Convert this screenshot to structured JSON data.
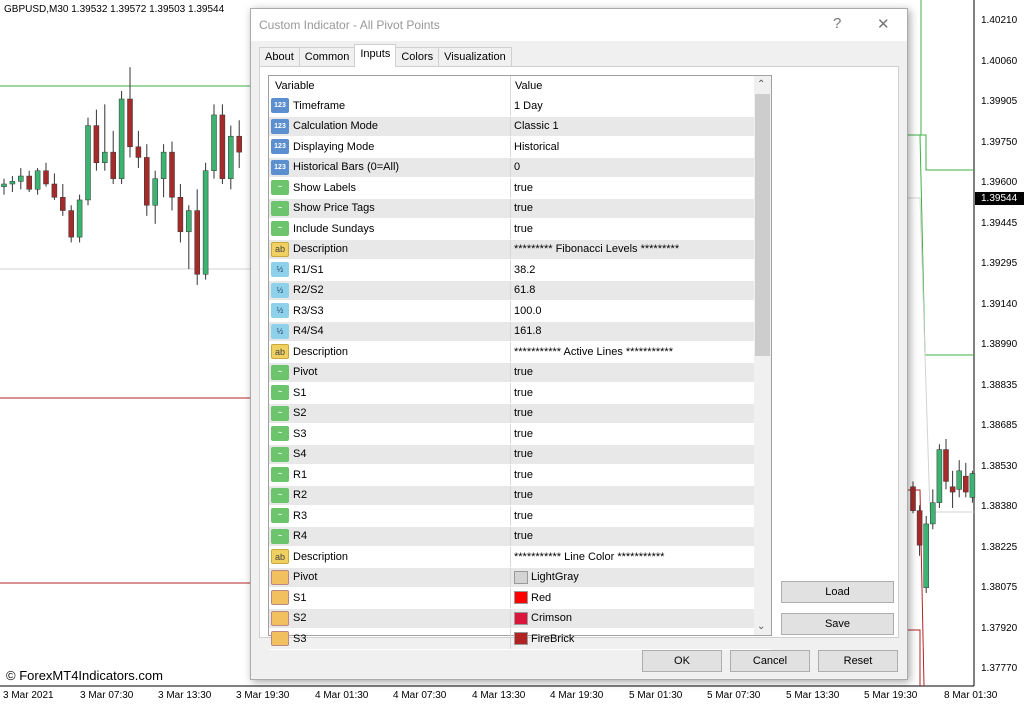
{
  "chart": {
    "symbol_line": "GBPUSD,M30  1.39532 1.39572 1.39503 1.39544",
    "price_axis": [
      "1.40210",
      "1.40060",
      "1.39905",
      "1.39750",
      "1.39600",
      "1.39445",
      "1.39295",
      "1.39140",
      "1.38990",
      "1.38835",
      "1.38685",
      "1.38530",
      "1.38380",
      "1.38225",
      "1.38075",
      "1.37920",
      "1.37770"
    ],
    "current_price": "1.39544",
    "time_axis": [
      "3 Mar 2021",
      "3 Mar 07:30",
      "3 Mar 13:30",
      "3 Mar 19:30",
      "4 Mar 01:30",
      "4 Mar 07:30",
      "4 Mar 13:30",
      "4 Mar 19:30",
      "5 Mar 01:30",
      "5 Mar 07:30",
      "5 Mar 13:30",
      "5 Mar 19:30",
      "8 Mar 01:30"
    ],
    "copyright": "© ForexMT4Indicators.com",
    "colors": {
      "bull": "#3cb371",
      "bear": "#a52a2a",
      "support": "#b22222",
      "resistance": "#3cb043",
      "pivot": "#d3d3d3"
    },
    "candles": [
      [
        1.3959,
        1.3962,
        1.3956,
        1.396
      ],
      [
        1.396,
        1.3963,
        1.3957,
        1.3961
      ],
      [
        1.3961,
        1.3966,
        1.3958,
        1.3963
      ],
      [
        1.3963,
        1.3965,
        1.3957,
        1.3958
      ],
      [
        1.3958,
        1.3966,
        1.3956,
        1.3965
      ],
      [
        1.3965,
        1.3968,
        1.3959,
        1.396
      ],
      [
        1.396,
        1.3964,
        1.3954,
        1.3955
      ],
      [
        1.3955,
        1.396,
        1.3948,
        1.395
      ],
      [
        1.395,
        1.3952,
        1.3938,
        1.394
      ],
      [
        1.394,
        1.3956,
        1.3938,
        1.3954
      ],
      [
        1.3954,
        1.3985,
        1.3952,
        1.3982
      ],
      [
        1.3982,
        1.3988,
        1.3965,
        1.3968
      ],
      [
        1.3968,
        1.399,
        1.3965,
        1.3972
      ],
      [
        1.3972,
        1.398,
        1.396,
        1.3962
      ],
      [
        1.3962,
        1.3995,
        1.396,
        1.3992
      ],
      [
        1.3992,
        1.4004,
        1.397,
        1.3974
      ],
      [
        1.3974,
        1.398,
        1.3966,
        1.397
      ],
      [
        1.397,
        1.3975,
        1.3948,
        1.3952
      ],
      [
        1.3952,
        1.3965,
        1.3945,
        1.3962
      ],
      [
        1.3962,
        1.3975,
        1.3955,
        1.3972
      ],
      [
        1.3972,
        1.3976,
        1.395,
        1.3955
      ],
      [
        1.3955,
        1.396,
        1.3938,
        1.3942
      ],
      [
        1.3942,
        1.3952,
        1.3928,
        1.395
      ],
      [
        1.395,
        1.3958,
        1.3922,
        1.3926
      ],
      [
        1.3926,
        1.3968,
        1.3924,
        1.3965
      ],
      [
        1.3965,
        1.399,
        1.3962,
        1.3986
      ],
      [
        1.3986,
        1.399,
        1.396,
        1.3962
      ],
      [
        1.3962,
        1.3982,
        1.3958,
        1.3978
      ],
      [
        1.3978,
        1.3984,
        1.3966,
        1.3972
      ]
    ],
    "candles_right": [
      [
        1.3846,
        1.3848,
        1.3836,
        1.3837
      ],
      [
        1.3837,
        1.3839,
        1.382,
        1.3824
      ],
      [
        1.3808,
        1.3835,
        1.3806,
        1.3832
      ],
      [
        1.3832,
        1.3845,
        1.383,
        1.384
      ],
      [
        1.384,
        1.3862,
        1.3838,
        1.386
      ],
      [
        1.386,
        1.3864,
        1.3845,
        1.3848
      ],
      [
        1.3846,
        1.3852,
        1.3838,
        1.3844
      ],
      [
        1.3845,
        1.3856,
        1.3842,
        1.3852
      ],
      [
        1.385,
        1.3855,
        1.3842,
        1.3844
      ],
      [
        1.3842,
        1.3852,
        1.384,
        1.3851
      ]
    ]
  },
  "dialog": {
    "title": "Custom Indicator - All Pivot Points",
    "help": "?",
    "close": "✕",
    "tabs": [
      "About",
      "Common",
      "Inputs",
      "Colors",
      "Visualization"
    ],
    "active_tab": "Inputs",
    "columns": [
      "Variable",
      "Value"
    ],
    "rows": [
      {
        "type": "int",
        "icon": "123",
        "variable": "Timeframe",
        "value": "1 Day"
      },
      {
        "type": "int",
        "icon": "123",
        "variable": "Calculation Mode",
        "value": "Classic 1"
      },
      {
        "type": "int",
        "icon": "123",
        "variable": "Displaying Mode",
        "value": "Historical"
      },
      {
        "type": "int",
        "icon": "123",
        "variable": "Historical Bars (0=All)",
        "value": "0"
      },
      {
        "type": "bool",
        "icon": "~",
        "variable": "Show Labels",
        "value": "true"
      },
      {
        "type": "bool",
        "icon": "~",
        "variable": "Show Price Tags",
        "value": "true"
      },
      {
        "type": "bool",
        "icon": "~",
        "variable": "Include Sundays",
        "value": "true"
      },
      {
        "type": "str",
        "icon": "ab",
        "variable": "Description",
        "value": "********* Fibonacci Levels *********"
      },
      {
        "type": "dbl",
        "icon": "½",
        "variable": "R1/S1",
        "value": "38.2"
      },
      {
        "type": "dbl",
        "icon": "½",
        "variable": "R2/S2",
        "value": "61.8"
      },
      {
        "type": "dbl",
        "icon": "½",
        "variable": "R3/S3",
        "value": "100.0"
      },
      {
        "type": "dbl",
        "icon": "½",
        "variable": "R4/S4",
        "value": "161.8"
      },
      {
        "type": "str",
        "icon": "ab",
        "variable": "Description",
        "value": "*********** Active Lines ***********"
      },
      {
        "type": "bool",
        "icon": "~",
        "variable": "Pivot",
        "value": "true"
      },
      {
        "type": "bool",
        "icon": "~",
        "variable": "S1",
        "value": "true"
      },
      {
        "type": "bool",
        "icon": "~",
        "variable": "S2",
        "value": "true"
      },
      {
        "type": "bool",
        "icon": "~",
        "variable": "S3",
        "value": "true"
      },
      {
        "type": "bool",
        "icon": "~",
        "variable": "S4",
        "value": "true"
      },
      {
        "type": "bool",
        "icon": "~",
        "variable": "R1",
        "value": "true"
      },
      {
        "type": "bool",
        "icon": "~",
        "variable": "R2",
        "value": "true"
      },
      {
        "type": "bool",
        "icon": "~",
        "variable": "R3",
        "value": "true"
      },
      {
        "type": "bool",
        "icon": "~",
        "variable": "R4",
        "value": "true"
      },
      {
        "type": "str",
        "icon": "ab",
        "variable": "Description",
        "value": "*********** Line Color ***********"
      },
      {
        "type": "color",
        "icon": "",
        "variable": "Pivot",
        "value": "LightGray",
        "swatch": "#d3d3d3"
      },
      {
        "type": "color",
        "icon": "",
        "variable": "S1",
        "value": "Red",
        "swatch": "#ff0000"
      },
      {
        "type": "color",
        "icon": "",
        "variable": "S2",
        "value": "Crimson",
        "swatch": "#dc143c"
      },
      {
        "type": "color",
        "icon": "",
        "variable": "S3",
        "value": "FireBrick",
        "swatch": "#b22222"
      }
    ],
    "buttons": {
      "load": "Load",
      "save": "Save",
      "ok": "OK",
      "cancel": "Cancel",
      "reset": "Reset"
    }
  }
}
